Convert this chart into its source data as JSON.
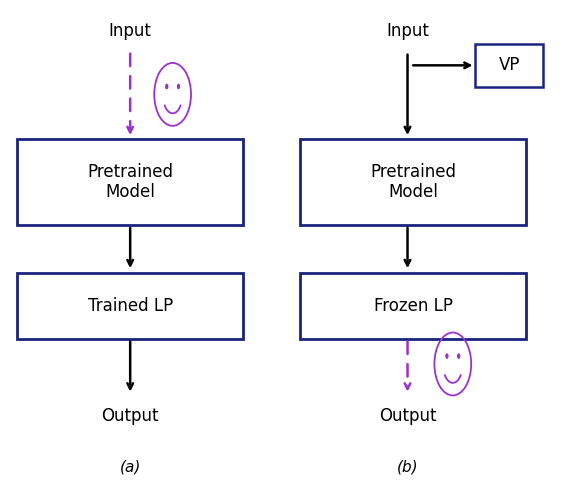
{
  "fig_width": 5.66,
  "fig_height": 4.84,
  "dpi": 100,
  "box_edge_color": "#1a237e",
  "arrow_color": "#000000",
  "purple_color": "#9933cc",
  "label_a": "(a)",
  "label_b": "(b)",
  "diagram_a": {
    "input_label": "Input",
    "box1_label": "Pretrained\nModel",
    "box2_label": "Trained LP",
    "output_label": "Output"
  },
  "diagram_b": {
    "input_label": "Input",
    "vp_label": "VP",
    "box1_label": "Pretrained\nModel",
    "box2_label": "Frozen LP",
    "output_label": "Output"
  }
}
